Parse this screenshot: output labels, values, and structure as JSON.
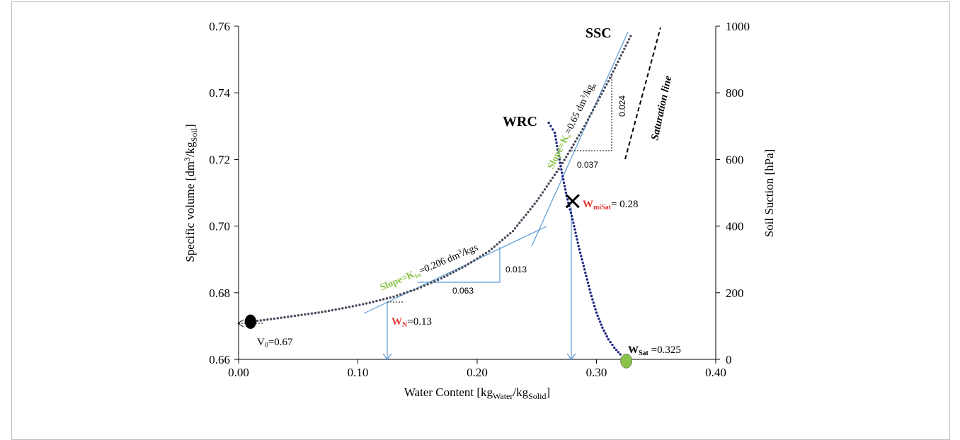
{
  "chart_data": {
    "type": "scatter",
    "title": "",
    "xlabel": {
      "main": "Water Content [kg",
      "sub1": "Water",
      "mid": "/kg",
      "sub2": "Solid",
      "end": "]"
    },
    "ylabel_left": {
      "main": "Specific volume [dm",
      "sup": "3",
      "mid": "/kg",
      "sub": "Soil",
      "end": "]"
    },
    "ylabel_right": "Soil Suction [hPa]",
    "xlim": [
      0.0,
      0.4
    ],
    "ylim_left": [
      0.66,
      0.76
    ],
    "ylim_right": [
      0,
      1000
    ],
    "x_ticks": [
      "0.00",
      "0.10",
      "0.20",
      "0.30",
      "0.40"
    ],
    "y_left_ticks": [
      "0.66",
      "0.68",
      "0.70",
      "0.72",
      "0.74",
      "0.76"
    ],
    "y_right_ticks": [
      "0",
      "200",
      "400",
      "600",
      "800",
      "1000"
    ],
    "grid": false,
    "series": [
      {
        "name": "SSC",
        "axis": "left",
        "color": "#4a4a5a",
        "x": [
          0.01,
          0.03,
          0.05,
          0.07,
          0.09,
          0.11,
          0.13,
          0.15,
          0.17,
          0.19,
          0.21,
          0.23,
          0.25,
          0.27,
          0.29,
          0.31,
          0.33
        ],
        "y": [
          0.6713,
          0.6722,
          0.6732,
          0.6742,
          0.6755,
          0.677,
          0.6788,
          0.6812,
          0.6843,
          0.688,
          0.6925,
          0.6985,
          0.7075,
          0.718,
          0.73,
          0.7435,
          0.758
        ]
      },
      {
        "name": "WRC",
        "axis": "right",
        "color": "#1a237e",
        "x": [
          0.26,
          0.265,
          0.27,
          0.275,
          0.28,
          0.285,
          0.29,
          0.295,
          0.3,
          0.305,
          0.31,
          0.315,
          0.32,
          0.325
        ],
        "y": [
          710,
          680,
          580,
          490,
          420,
          340,
          270,
          200,
          140,
          95,
          60,
          35,
          15,
          0
        ]
      }
    ],
    "points": [
      {
        "label": "V0",
        "x": 0.01,
        "y": 0.6713,
        "color": "#000000"
      },
      {
        "label": "WSat",
        "x": 0.325,
        "y": 0.6595,
        "color": "#8bc34a"
      },
      {
        "label": "WmiSat",
        "x": 0.28,
        "y": 0.7075,
        "color": "#000000"
      }
    ],
    "annotations": {
      "ssc": "SSC",
      "wrc": "WRC",
      "saturation": "Saturation line",
      "v0_main": "V",
      "v0_sub": "0",
      "v0_val": "=0.67",
      "wn_main": "W",
      "wn_sub": "N",
      "wn_val": "=0.13",
      "wsat_main": "W",
      "wsat_sub": "Sat",
      "wsat_val": " =0.325",
      "wmisat_main": "W",
      "wmisat_sub": "miSat",
      "wmisat_val": "= 0.28",
      "slope_bs_green": "Slope=K",
      "slope_bs_sub": "bs",
      "slope_bs_val": "=0.206 dm",
      "slope_bs_sup": "3",
      "slope_bs_unit": "/kgs",
      "slope_s_green": "Slope=K",
      "slope_s_sub": "s",
      "slope_s_val": "=0.65 dm",
      "slope_s_sup": "3",
      "slope_s_unit": "/kg",
      "slope_s_unit_sub": "s",
      "tri1_dx": "0.063",
      "tri1_dy": "0.013",
      "tri2_dx": "0.037",
      "tri2_dy": "0.024"
    },
    "colors": {
      "accent_green": "#8bc34a",
      "accent_red": "#e53935",
      "tangent_blue": "#5b9bd5"
    }
  }
}
